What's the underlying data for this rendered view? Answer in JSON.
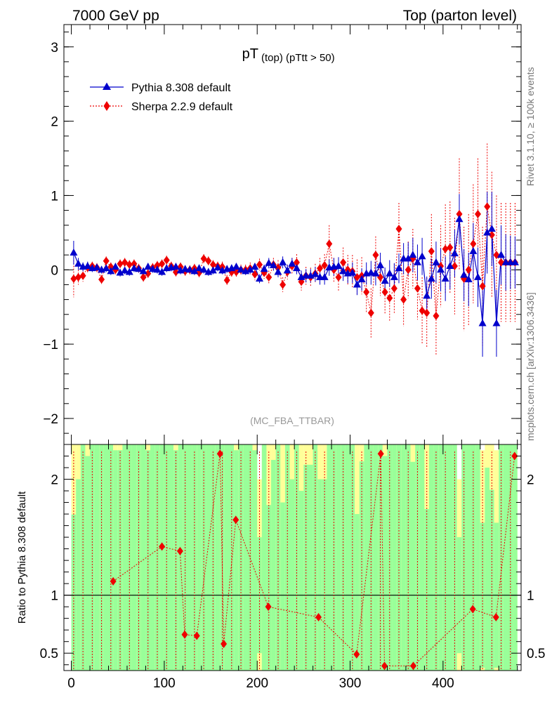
{
  "header": {
    "left": "7000 GeV pp",
    "right": "Top (parton level)"
  },
  "side_labels": {
    "rivet": "Rivet 3.1.10, ≥ 100k events",
    "mcplots": "mcplots.cern.ch [arXiv:1306.3436]"
  },
  "chart_data": {
    "type": "line",
    "title_main": "pT",
    "title_sub": "(top) (pTtt > 50)",
    "analysis_tag": "(MC_FBA_TTBAR)",
    "main_panel": {
      "ylim": [
        -2.35,
        3.3
      ],
      "yticks": [
        -2,
        -1,
        0,
        1,
        2,
        3
      ],
      "ytick_labels": [
        "−2",
        "−1",
        "0",
        "1",
        "2",
        "3"
      ]
    },
    "ratio_panel": {
      "ylabel": "Ratio to Pythia 8.308 default",
      "ylim": [
        0.35,
        2.3
      ],
      "yticks": [
        0.5,
        1,
        2
      ],
      "ytick_labels": [
        "0.5",
        "1",
        "2"
      ],
      "reference_line": 1
    },
    "x_axis": {
      "xlim": [
        -8,
        484
      ],
      "xticks": [
        0,
        100,
        200,
        300,
        400
      ],
      "xtick_labels": [
        "0",
        "100",
        "200",
        "300",
        "400"
      ]
    },
    "legend": [
      {
        "name": "Pythia 8.308 default",
        "color": "#0000cc",
        "marker": "triangle",
        "line": "solid"
      },
      {
        "name": "Sherpa 2.2.9 default",
        "color": "#ee0000",
        "marker": "diamond",
        "line": "dotted"
      }
    ],
    "series": [
      {
        "name": "Pythia 8.308 default",
        "x": [
          2.5,
          7.5,
          12.5,
          17.5,
          22.5,
          27.5,
          32.5,
          37.5,
          42.5,
          47.5,
          52.5,
          57.5,
          62.5,
          67.5,
          72.5,
          77.5,
          82.5,
          87.5,
          92.5,
          97.5,
          102.5,
          107.5,
          112.5,
          117.5,
          122.5,
          127.5,
          132.5,
          137.5,
          142.5,
          147.5,
          152.5,
          157.5,
          162.5,
          167.5,
          172.5,
          177.5,
          182.5,
          187.5,
          192.5,
          197.5,
          202.5,
          207.5,
          212.5,
          217.5,
          222.5,
          227.5,
          232.5,
          237.5,
          242.5,
          247.5,
          252.5,
          257.5,
          262.5,
          267.5,
          272.5,
          277.5,
          282.5,
          287.5,
          292.5,
          297.5,
          302.5,
          307.5,
          312.5,
          317.5,
          322.5,
          327.5,
          332.5,
          337.5,
          342.5,
          347.5,
          352.5,
          357.5,
          362.5,
          367.5,
          372.5,
          377.5,
          382.5,
          387.5,
          392.5,
          397.5,
          402.5,
          407.5,
          412.5,
          417.5,
          422.5,
          427.5,
          432.5,
          437.5,
          442.5,
          447.5,
          452.5,
          457.5,
          462.5,
          467.5,
          472.5,
          477.5
        ],
        "y": [
          0.23,
          0.08,
          0.04,
          0.05,
          0.02,
          0.03,
          0.0,
          0.02,
          -0.02,
          0.04,
          -0.04,
          -0.01,
          -0.03,
          0.02,
          0.01,
          -0.02,
          0.04,
          0.01,
          0.0,
          -0.03,
          0.02,
          0.03,
          0.04,
          -0.01,
          0.01,
          0.0,
          -0.02,
          0.02,
          0.0,
          -0.03,
          -0.01,
          0.03,
          -0.01,
          0.01,
          0.02,
          0.04,
          0.0,
          -0.02,
          0.0,
          0.04,
          -0.12,
          0.01,
          0.09,
          0.06,
          -0.03,
          0.1,
          -0.01,
          0.08,
          0.02,
          -0.1,
          -0.08,
          -0.08,
          -0.06,
          -0.1,
          -0.1,
          0.03,
          0.04,
          0.05,
          -0.02,
          -0.05,
          -0.04,
          -0.2,
          -0.13,
          -0.05,
          -0.04,
          -0.05,
          0.06,
          -0.15,
          -0.05,
          -0.1,
          0.02,
          0.15,
          0.15,
          0.2,
          0.1,
          0.18,
          -0.35,
          -0.12,
          0.1,
          0.0,
          -0.12,
          0.05,
          0.22,
          0.68,
          -0.07,
          -0.13,
          0.25,
          -0.1,
          -0.72,
          0.5,
          0.55,
          -0.72,
          0.2,
          0.1,
          0.1,
          0.1
        ],
        "err": [
          0.16,
          0.08,
          0.06,
          0.06,
          0.05,
          0.05,
          0.05,
          0.05,
          0.05,
          0.05,
          0.05,
          0.05,
          0.05,
          0.05,
          0.05,
          0.05,
          0.05,
          0.05,
          0.05,
          0.05,
          0.05,
          0.05,
          0.05,
          0.05,
          0.05,
          0.05,
          0.05,
          0.05,
          0.05,
          0.05,
          0.05,
          0.05,
          0.05,
          0.05,
          0.05,
          0.05,
          0.05,
          0.05,
          0.05,
          0.05,
          0.06,
          0.06,
          0.07,
          0.07,
          0.07,
          0.08,
          0.08,
          0.08,
          0.08,
          0.09,
          0.09,
          0.09,
          0.1,
          0.1,
          0.1,
          0.11,
          0.12,
          0.12,
          0.13,
          0.13,
          0.14,
          0.14,
          0.15,
          0.15,
          0.16,
          0.16,
          0.17,
          0.18,
          0.18,
          0.19,
          0.2,
          0.21,
          0.22,
          0.23,
          0.24,
          0.25,
          0.26,
          0.27,
          0.28,
          0.29,
          0.3,
          0.31,
          0.32,
          0.34,
          0.35,
          0.36,
          0.38,
          0.4,
          0.45,
          0.55,
          0.5,
          0.45,
          0.4,
          0.38,
          0.36,
          0.35
        ]
      },
      {
        "name": "Sherpa 2.2.9 default",
        "x": [
          2.5,
          7.5,
          12.5,
          17.5,
          22.5,
          27.5,
          32.5,
          37.5,
          42.5,
          47.5,
          52.5,
          57.5,
          62.5,
          67.5,
          72.5,
          77.5,
          82.5,
          87.5,
          92.5,
          97.5,
          102.5,
          107.5,
          112.5,
          117.5,
          122.5,
          127.5,
          132.5,
          137.5,
          142.5,
          147.5,
          152.5,
          157.5,
          162.5,
          167.5,
          172.5,
          177.5,
          182.5,
          187.5,
          192.5,
          197.5,
          202.5,
          207.5,
          212.5,
          217.5,
          222.5,
          227.5,
          232.5,
          237.5,
          242.5,
          247.5,
          252.5,
          257.5,
          262.5,
          267.5,
          272.5,
          277.5,
          282.5,
          287.5,
          292.5,
          297.5,
          302.5,
          307.5,
          312.5,
          317.5,
          322.5,
          327.5,
          332.5,
          337.5,
          342.5,
          347.5,
          352.5,
          357.5,
          362.5,
          367.5,
          372.5,
          377.5,
          382.5,
          387.5,
          392.5,
          397.5,
          402.5,
          407.5,
          412.5,
          417.5,
          422.5,
          427.5,
          432.5,
          437.5,
          442.5,
          447.5,
          452.5,
          457.5,
          462.5,
          467.5,
          472.5,
          477.5
        ],
        "y": [
          -0.12,
          -0.1,
          -0.08,
          0.03,
          0.05,
          0.03,
          -0.13,
          0.12,
          0.04,
          0.0,
          0.08,
          0.1,
          0.07,
          0.08,
          0.02,
          -0.1,
          -0.05,
          0.03,
          0.06,
          0.08,
          0.13,
          0.05,
          -0.03,
          0.04,
          -0.02,
          0.0,
          0.02,
          -0.04,
          0.15,
          0.12,
          0.07,
          0.05,
          0.04,
          -0.14,
          -0.03,
          -0.03,
          0.0,
          0.0,
          0.02,
          -0.06,
          0.07,
          -0.04,
          -0.1,
          0.07,
          0.03,
          -0.2,
          -0.03,
          0.05,
          0.1,
          -0.16,
          -0.08,
          -0.1,
          -0.05,
          0.02,
          0.06,
          0.35,
          0.0,
          -0.1,
          0.1,
          0.0,
          -0.02,
          -0.1,
          -0.08,
          -0.3,
          -0.58,
          0.2,
          -0.1,
          -0.3,
          -0.38,
          -0.25,
          0.55,
          -0.4,
          0.0,
          0.15,
          -0.25,
          -0.55,
          -0.58,
          0.25,
          -0.62,
          0.05,
          0.28,
          0.3,
          0.05,
          0.75,
          -0.12,
          0.0,
          0.35,
          0.75,
          -0.22,
          0.85,
          0.47,
          0.2,
          0.1,
          0.1,
          0.1,
          0.1
        ],
        "err": [
          0.25,
          0.1,
          0.08,
          0.07,
          0.06,
          0.06,
          0.06,
          0.06,
          0.06,
          0.06,
          0.06,
          0.06,
          0.06,
          0.06,
          0.06,
          0.06,
          0.06,
          0.06,
          0.06,
          0.06,
          0.06,
          0.06,
          0.06,
          0.06,
          0.06,
          0.06,
          0.06,
          0.06,
          0.06,
          0.06,
          0.06,
          0.06,
          0.07,
          0.07,
          0.07,
          0.07,
          0.07,
          0.07,
          0.08,
          0.08,
          0.08,
          0.08,
          0.09,
          0.09,
          0.1,
          0.1,
          0.1,
          0.11,
          0.11,
          0.12,
          0.12,
          0.13,
          0.13,
          0.14,
          0.15,
          0.25,
          0.16,
          0.18,
          0.2,
          0.2,
          0.22,
          0.24,
          0.25,
          0.28,
          0.33,
          0.25,
          0.25,
          0.3,
          0.32,
          0.33,
          0.35,
          0.36,
          0.38,
          0.4,
          0.42,
          0.45,
          0.47,
          0.5,
          0.52,
          0.55,
          0.6,
          0.62,
          0.65,
          0.75,
          0.7,
          0.75,
          0.8,
          0.75,
          0.8,
          0.85,
          0.85,
          0.8,
          0.8,
          0.8,
          0.8,
          0.8
        ]
      }
    ],
    "ratio_series": {
      "name": "Sherpa 2.2.9 default",
      "x": [
        45,
        97.5,
        117,
        122,
        135,
        160,
        164,
        177,
        212,
        266,
        307,
        333,
        337,
        368,
        432,
        457,
        477
      ],
      "y": [
        1.12,
        1.42,
        1.38,
        0.66,
        0.65,
        2.22,
        0.58,
        1.65,
        0.9,
        0.81,
        0.49,
        2.22,
        0.39,
        0.39,
        0.88,
        0.81,
        2.2
      ]
    }
  }
}
